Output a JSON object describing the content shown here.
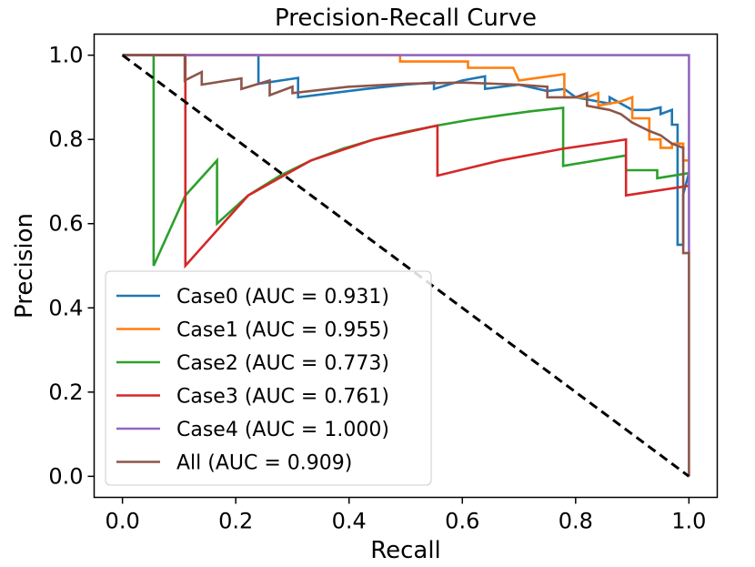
{
  "chart_data": {
    "type": "line",
    "title": "Precision-Recall Curve",
    "xlabel": "Recall",
    "ylabel": "Precision",
    "xlim": [
      -0.05,
      1.05
    ],
    "ylim": [
      -0.05,
      1.05
    ],
    "xticks": [
      0.0,
      0.2,
      0.4,
      0.6,
      0.8,
      1.0
    ],
    "xtick_labels": [
      "0.0",
      "0.2",
      "0.4",
      "0.6",
      "0.8",
      "1.0"
    ],
    "yticks": [
      0.0,
      0.2,
      0.4,
      0.6,
      0.8,
      1.0
    ],
    "ytick_labels": [
      "0.0",
      "0.2",
      "0.4",
      "0.6",
      "0.8",
      "1.0"
    ],
    "legend_position": "lower-left",
    "series": [
      {
        "name": "Case0 (AUC = 0.931)",
        "color": "#1f77b4",
        "x": [
          0.0,
          0.24,
          0.24,
          0.31,
          0.31,
          0.43,
          0.5,
          0.55,
          0.55,
          0.6,
          0.64,
          0.64,
          0.7,
          0.75,
          0.78,
          0.8,
          0.86,
          0.86,
          0.9,
          0.93,
          0.95,
          0.95,
          0.97,
          0.97,
          0.98,
          0.98,
          0.99,
          0.99,
          1.0
        ],
        "y": [
          1.0,
          1.0,
          0.932,
          0.946,
          0.9,
          0.92,
          0.93,
          0.935,
          0.92,
          0.94,
          0.95,
          0.92,
          0.93,
          0.915,
          0.92,
          0.9,
          0.885,
          0.9,
          0.87,
          0.87,
          0.876,
          0.86,
          0.87,
          0.835,
          0.835,
          0.55,
          0.55,
          0.67,
          0.72
        ]
      },
      {
        "name": "Case1 (AUC = 0.955)",
        "color": "#ff7f0e",
        "x": [
          0.0,
          0.49,
          0.49,
          0.61,
          0.61,
          0.69,
          0.7,
          0.78,
          0.78,
          0.82,
          0.84,
          0.84,
          0.88,
          0.9,
          0.9,
          0.93,
          0.93,
          0.95,
          0.95,
          0.97,
          0.97,
          0.99,
          0.99,
          1.0
        ],
        "y": [
          1.0,
          1.0,
          0.985,
          0.985,
          0.97,
          0.97,
          0.94,
          0.955,
          0.9,
          0.9,
          0.91,
          0.88,
          0.89,
          0.9,
          0.85,
          0.85,
          0.8,
          0.8,
          0.78,
          0.78,
          0.79,
          0.79,
          0.75,
          0.75
        ]
      },
      {
        "name": "Case2 (AUC = 0.773)",
        "color": "#2ca02c",
        "x": [
          0.0,
          0.055,
          0.055,
          0.111,
          0.111,
          0.167,
          0.167,
          0.222,
          0.278,
          0.333,
          0.389,
          0.444,
          0.5,
          0.556,
          0.611,
          0.667,
          0.722,
          0.778,
          0.778,
          0.889,
          0.889,
          0.944,
          0.944,
          1.0,
          1.0
        ],
        "y": [
          1.0,
          1.0,
          0.5,
          0.667,
          0.667,
          0.75,
          0.6,
          0.667,
          0.714,
          0.75,
          0.778,
          0.8,
          0.818,
          0.833,
          0.846,
          0.857,
          0.867,
          0.875,
          0.737,
          0.762,
          0.727,
          0.727,
          0.708,
          0.72,
          0.72
        ]
      },
      {
        "name": "Case3 (AUC = 0.761)",
        "color": "#d62728",
        "x": [
          0.0,
          0.111,
          0.111,
          0.222,
          0.333,
          0.444,
          0.556,
          0.556,
          0.667,
          0.778,
          0.889,
          0.889,
          1.0,
          1.0
        ],
        "y": [
          1.0,
          1.0,
          0.5,
          0.667,
          0.75,
          0.8,
          0.833,
          0.714,
          0.75,
          0.778,
          0.8,
          0.667,
          0.69,
          0.69
        ]
      },
      {
        "name": "Case4 (AUC = 1.000)",
        "color": "#9467bd",
        "x": [
          0.0,
          1.0,
          1.0
        ],
        "y": [
          1.0,
          1.0,
          0.53
        ]
      },
      {
        "name": "All (AUC = 0.909)",
        "color": "#8c564b",
        "x": [
          0.0,
          0.11,
          0.11,
          0.14,
          0.14,
          0.21,
          0.21,
          0.26,
          0.26,
          0.3,
          0.3,
          0.4,
          0.5,
          0.6,
          0.7,
          0.75,
          0.75,
          0.8,
          0.82,
          0.82,
          0.86,
          0.88,
          0.9,
          0.93,
          0.95,
          0.97,
          0.99,
          0.99,
          1.0,
          1.0
        ],
        "y": [
          1.0,
          1.0,
          0.94,
          0.96,
          0.93,
          0.945,
          0.92,
          0.94,
          0.905,
          0.925,
          0.91,
          0.925,
          0.932,
          0.935,
          0.93,
          0.925,
          0.9,
          0.9,
          0.91,
          0.88,
          0.87,
          0.86,
          0.84,
          0.82,
          0.81,
          0.79,
          0.78,
          0.53,
          0.53,
          0.0
        ]
      },
      {
        "name": "Baseline",
        "color": "#000000",
        "dashed": true,
        "in_legend": false,
        "x": [
          0.0,
          1.0
        ],
        "y": [
          1.0,
          0.0
        ]
      }
    ]
  }
}
